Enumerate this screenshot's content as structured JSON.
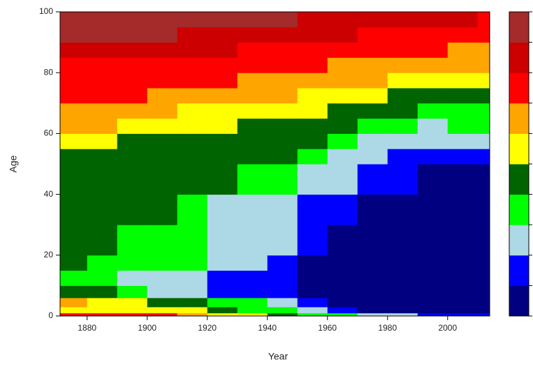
{
  "chart_data": {
    "type": "heatmap",
    "xlabel": "Year",
    "ylabel": "Age",
    "xlim": [
      1871,
      2014
    ],
    "ylim": [
      0,
      100
    ],
    "xticks": [
      1880,
      1900,
      1920,
      1940,
      1960,
      1980,
      2000
    ],
    "yticks": [
      0,
      20,
      40,
      60,
      80,
      100
    ],
    "x_bins": [
      1871,
      1880,
      1890,
      1900,
      1910,
      1920,
      1930,
      1940,
      1950,
      1960,
      1970,
      1980,
      1990,
      2000,
      2010,
      2014
    ],
    "y_bins": [
      0,
      1,
      3,
      6,
      10,
      15,
      20,
      30,
      40,
      50,
      55,
      60,
      65,
      70,
      75,
      80,
      85,
      90,
      95,
      100
    ],
    "colors": [
      "#000080",
      "#0000ff",
      "#add8e6",
      "#00ff00",
      "#006400",
      "#ffff00",
      "#ffa500",
      "#ff0000",
      "#cc0000",
      "#a52a2a"
    ],
    "z": [
      [
        8,
        6,
        7,
        5,
        4,
        5,
        5,
        5,
        5,
        5,
        6,
        7,
        7,
        8,
        8,
        8,
        9,
        10,
        10
      ],
      [
        8,
        6,
        6,
        5,
        4,
        4,
        5,
        5,
        5,
        5,
        6,
        7,
        7,
        8,
        8,
        8,
        9,
        10,
        10
      ],
      [
        8,
        6,
        6,
        4,
        3,
        4,
        4,
        5,
        5,
        5,
        5,
        6,
        7,
        8,
        8,
        8,
        9,
        10,
        10
      ],
      [
        8,
        6,
        5,
        3,
        3,
        4,
        4,
        5,
        5,
        5,
        5,
        6,
        7,
        7,
        8,
        8,
        9,
        10,
        10
      ],
      [
        7,
        6,
        5,
        3,
        3,
        4,
        4,
        4,
        5,
        5,
        5,
        6,
        6,
        7,
        8,
        8,
        9,
        9,
        10
      ],
      [
        6,
        5,
        4,
        2,
        2,
        3,
        3,
        3,
        5,
        5,
        5,
        6,
        6,
        7,
        8,
        8,
        9,
        9,
        10
      ],
      [
        6,
        4,
        4,
        2,
        2,
        3,
        3,
        3,
        4,
        5,
        5,
        5,
        6,
        7,
        7,
        8,
        8,
        9,
        10
      ],
      [
        5,
        4,
        3,
        2,
        2,
        2,
        3,
        3,
        4,
        5,
        5,
        5,
        6,
        7,
        7,
        8,
        8,
        9,
        10
      ],
      [
        4,
        3,
        2,
        1,
        1,
        1,
        2,
        2,
        3,
        4,
        5,
        5,
        6,
        6,
        7,
        8,
        8,
        9,
        9
      ],
      [
        4,
        2,
        1,
        1,
        1,
        1,
        1,
        2,
        3,
        3,
        4,
        5,
        5,
        6,
        7,
        7,
        8,
        9,
        9
      ],
      [
        3,
        1,
        1,
        1,
        1,
        1,
        1,
        1,
        2,
        3,
        3,
        4,
        5,
        6,
        7,
        7,
        8,
        8,
        9
      ],
      [
        3,
        1,
        1,
        1,
        1,
        1,
        1,
        1,
        2,
        2,
        3,
        4,
        5,
        5,
        6,
        7,
        8,
        8,
        9
      ],
      [
        2,
        1,
        1,
        1,
        1,
        1,
        1,
        1,
        1,
        2,
        3,
        3,
        4,
        5,
        6,
        7,
        8,
        8,
        9
      ],
      [
        2,
        1,
        1,
        1,
        1,
        1,
        1,
        1,
        1,
        2,
        3,
        4,
        4,
        5,
        6,
        7,
        7,
        8,
        9
      ],
      [
        2,
        1,
        1,
        1,
        1,
        1,
        1,
        1,
        1,
        2,
        3,
        4,
        4,
        5,
        6,
        7,
        7,
        8,
        8
      ]
    ]
  }
}
